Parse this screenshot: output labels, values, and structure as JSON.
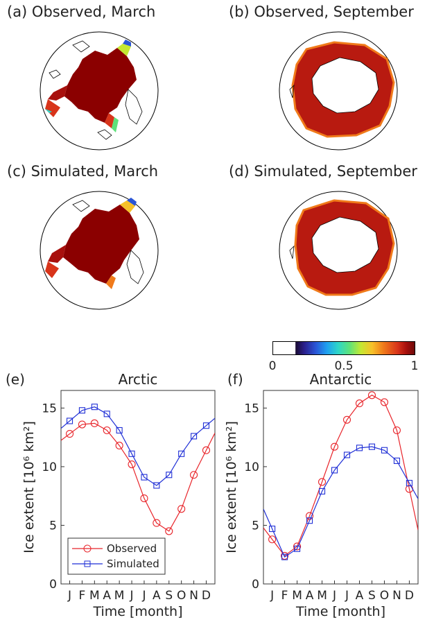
{
  "panels": {
    "a": "(a) Observed, March",
    "b": "(b) Observed, September",
    "c": "(c) Simulated, March",
    "d": "(d) Simulated, September"
  },
  "colorbar": {
    "ticks": [
      "0",
      "0.5",
      "1"
    ],
    "colors": {
      "ocean": "#ffffff",
      "ice": "#8b0000",
      "edge": "#f7c12a"
    }
  },
  "chart_data": [
    {
      "type": "line",
      "panel_label": "(e)",
      "title": "Arctic",
      "xlabel": "Time [month]",
      "ylabel": "Ice extent [10⁶ km²]",
      "ylim": [
        0,
        16.5
      ],
      "yticks": [
        "0",
        "5",
        "10",
        "15"
      ],
      "categories": [
        "J",
        "F",
        "M",
        "A",
        "M",
        "J",
        "J",
        "A",
        "S",
        "O",
        "N",
        "D"
      ],
      "legend_position": "bottom-left",
      "series": [
        {
          "name": "Observed",
          "color": "#e8242a",
          "marker": "circle",
          "values": [
            12.8,
            13.6,
            13.7,
            13.1,
            11.8,
            10.2,
            7.3,
            5.2,
            4.5,
            6.4,
            9.3,
            11.4
          ]
        },
        {
          "name": "Simulated",
          "color": "#1f2fd6",
          "marker": "square",
          "values": [
            13.9,
            14.8,
            15.1,
            14.5,
            13.1,
            11.1,
            9.1,
            8.4,
            9.3,
            11.1,
            12.6,
            13.5
          ]
        }
      ]
    },
    {
      "type": "line",
      "panel_label": "(f)",
      "title": "Antarctic",
      "xlabel": "Time [month]",
      "ylabel": "Ice extent [10⁶ km²]",
      "ylim": [
        0,
        16.5
      ],
      "yticks": [
        "0",
        "5",
        "10",
        "15"
      ],
      "categories": [
        "J",
        "F",
        "M",
        "A",
        "M",
        "J",
        "J",
        "A",
        "S",
        "O",
        "N",
        "D"
      ],
      "series": [
        {
          "name": "Observed",
          "color": "#e8242a",
          "marker": "circle",
          "values": [
            3.8,
            2.4,
            3.2,
            5.8,
            8.7,
            11.7,
            14.0,
            15.4,
            16.1,
            15.5,
            13.1,
            8.1
          ]
        },
        {
          "name": "Simulated",
          "color": "#1f2fd6",
          "marker": "square",
          "values": [
            4.7,
            2.3,
            3.0,
            5.4,
            7.9,
            9.7,
            11.0,
            11.6,
            11.7,
            11.4,
            10.5,
            8.6
          ]
        }
      ]
    }
  ]
}
